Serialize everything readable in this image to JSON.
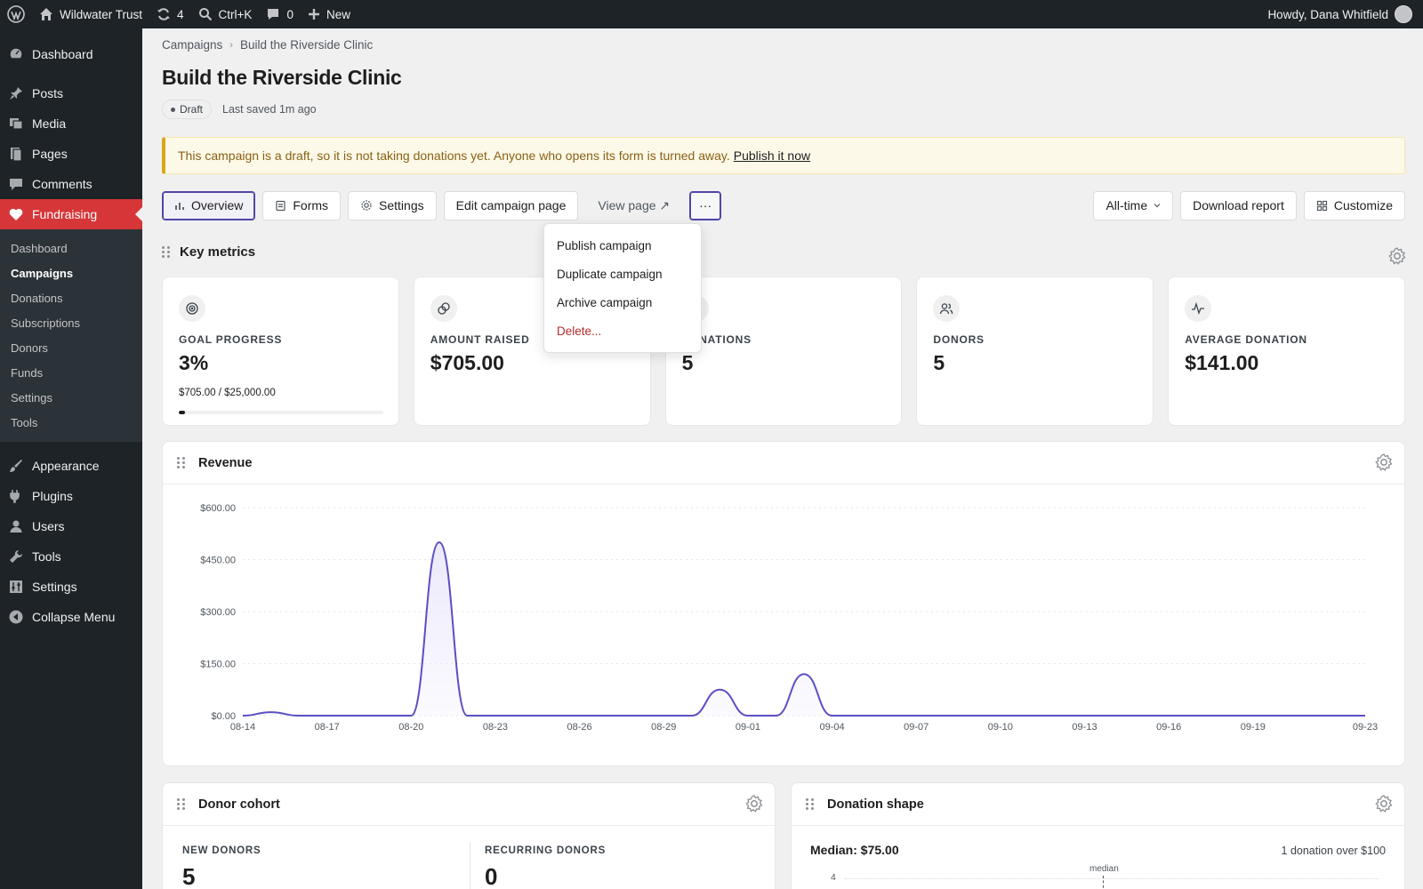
{
  "adminbar": {
    "site_name": "Wildwater Trust",
    "updates_count": "4",
    "search_shortcut": "Ctrl+K",
    "comments_count": "0",
    "new_label": "New",
    "howdy": "Howdy, Dana Whitfield"
  },
  "sidebar": {
    "top": [
      {
        "label": "Dashboard",
        "icon": "dashboard-icon"
      }
    ],
    "main": [
      {
        "label": "Posts",
        "icon": "pin-icon"
      },
      {
        "label": "Media",
        "icon": "media-icon"
      },
      {
        "label": "Pages",
        "icon": "pages-icon"
      },
      {
        "label": "Comments",
        "icon": "comment-icon"
      }
    ],
    "current": {
      "label": "Fundraising",
      "icon": "heart-icon"
    },
    "submenu": [
      "Dashboard",
      "Campaigns",
      "Donations",
      "Subscriptions",
      "Donors",
      "Funds",
      "Settings",
      "Tools"
    ],
    "submenu_active": "Campaigns",
    "bottom": [
      {
        "label": "Appearance",
        "icon": "brush-icon"
      },
      {
        "label": "Plugins",
        "icon": "plugin-icon"
      },
      {
        "label": "Users",
        "icon": "user-icon"
      },
      {
        "label": "Tools",
        "icon": "wrench-icon"
      },
      {
        "label": "Settings",
        "icon": "sliders-icon"
      },
      {
        "label": "Collapse Menu",
        "icon": "collapse-icon"
      }
    ]
  },
  "breadcrumb": {
    "parent": "Campaigns",
    "separator": "›",
    "current": "Build the Riverside Clinic"
  },
  "page": {
    "title": "Build the Riverside Clinic",
    "status": "Draft",
    "last_saved": "Last saved 1m ago"
  },
  "notice": {
    "text": "This campaign is a draft, so it is not taking donations yet. Anyone who opens its form is turned away.",
    "link": "Publish it now"
  },
  "toolbar": {
    "tabs": [
      "Overview",
      "Forms",
      "Settings"
    ],
    "edit_page": "Edit campaign page",
    "view_page": "View page ↗",
    "more": "···",
    "range": "All-time",
    "download": "Download report",
    "customize": "Customize"
  },
  "more_menu": {
    "items": [
      "Publish campaign",
      "Duplicate campaign",
      "Archive campaign"
    ],
    "danger": "Delete..."
  },
  "key_metrics": {
    "title": "Key metrics",
    "cards": [
      {
        "label": "Goal progress",
        "value": "3%",
        "sub": "$705.00 / $25,000.00",
        "progress": 0.03,
        "icon": "target-icon"
      },
      {
        "label": "Amount raised",
        "value": "$705.00",
        "icon": "coins-icon"
      },
      {
        "label": "Donations",
        "value": "5",
        "icon": "gift-icon"
      },
      {
        "label": "Donors",
        "value": "5",
        "icon": "users-icon"
      },
      {
        "label": "Average donation",
        "value": "$141.00",
        "icon": "pulse-icon"
      }
    ]
  },
  "revenue": {
    "title": "Revenue"
  },
  "chart_data": {
    "type": "area",
    "title": "Revenue",
    "xlabel": "",
    "ylabel": "",
    "ylim": [
      0,
      600
    ],
    "yticks": [
      "$0.00",
      "$150.00",
      "$300.00",
      "$450.00",
      "$600.00"
    ],
    "xticks": [
      "08-14",
      "08-17",
      "08-20",
      "08-23",
      "08-26",
      "08-29",
      "09-01",
      "09-04",
      "09-07",
      "09-10",
      "09-13",
      "09-16",
      "09-19",
      "09-23"
    ],
    "series": [
      {
        "x": [
          "08-14",
          "08-15",
          "08-16",
          "08-17",
          "08-18",
          "08-19",
          "08-20",
          "08-21",
          "08-22",
          "08-23",
          "08-24",
          "08-25",
          "08-26",
          "08-27",
          "08-28",
          "08-29",
          "08-30",
          "08-31",
          "09-01",
          "09-02",
          "09-03",
          "09-04",
          "09-05",
          "09-06",
          "09-07",
          "09-08",
          "09-09",
          "09-10",
          "09-11",
          "09-12",
          "09-13",
          "09-14",
          "09-15",
          "09-16",
          "09-17",
          "09-18",
          "09-19",
          "09-20",
          "09-21",
          "09-22",
          "09-23"
        ],
        "values": [
          0,
          10,
          0,
          0,
          0,
          0,
          0,
          500,
          0,
          0,
          0,
          0,
          0,
          0,
          0,
          0,
          0,
          75,
          0,
          0,
          120,
          0,
          0,
          0,
          0,
          0,
          0,
          0,
          0,
          0,
          0,
          0,
          0,
          0,
          0,
          0,
          0,
          0,
          0,
          0,
          0
        ]
      }
    ],
    "colors": {
      "line": "#5b4fc4",
      "fill": "#ece9fb"
    },
    "grid": true
  },
  "donor_cohort": {
    "title": "Donor cohort",
    "new_label": "New donors",
    "new_value": "5",
    "recurring_label": "Recurring donors",
    "recurring_value": "0"
  },
  "donation_shape": {
    "title": "Donation shape",
    "median": "Median: $75.00",
    "over_note": "1 donation over $100",
    "marker_label": "median",
    "y_tick": "4"
  },
  "colors": {
    "accent": "#4f46a5",
    "admin_bg": "#1d2327",
    "current_menu": "#d63638",
    "danger": "#b32d2e"
  }
}
